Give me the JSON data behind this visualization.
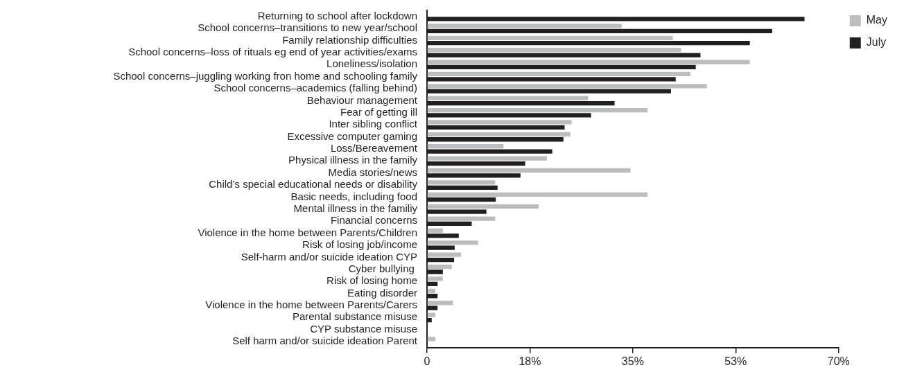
{
  "chart_data": {
    "type": "bar",
    "orientation": "horizontal",
    "categories": [
      "Returning to school after lockdown",
      "School concerns–transitions to new year/school",
      "Family relationship difficulties",
      "School concerns–loss of rituals eg end of year activities/exams",
      "Loneliness/isolation",
      "School concerns–juggling working fron home and schooling family",
      "School concerns–academics (falling behind)",
      "Behaviour management",
      "Fear of getting ill",
      "Inter sibling conflict",
      "Excessive computer gaming",
      "Loss/Bereavement",
      "Physical illness in the family",
      "Media stories/news",
      "Child’s special educational needs or disability",
      "Basic needs, including food",
      "Mental illness in the familiy",
      "Financial concerns",
      "Violence in the home between Parents/Children",
      "Risk of losing job/income",
      "Self-harm and/or suicide ideation CYP",
      "Cyber bullying ",
      "Risk of losing home",
      "Eating disorder",
      "Violence in the home between Parents/Carers",
      "Parental substance misuse",
      "CYP substance misuse",
      "Self harm and/or suicide ideation Parent"
    ],
    "series": [
      {
        "name": "May",
        "color": "#bcbdc0",
        "values": [
          null,
          33.1,
          41.8,
          43.2,
          54.9,
          44.8,
          47.6,
          27.4,
          37.5,
          24.6,
          24.4,
          13.0,
          20.4,
          34.6,
          11.6,
          37.5,
          19.0,
          11.6,
          2.7,
          8.7,
          5.8,
          4.2,
          2.7,
          1.4,
          4.4,
          1.4,
          null,
          1.4
        ]
      },
      {
        "name": "July",
        "color": "#231f20",
        "values": [
          64.2,
          58.7,
          54.9,
          46.5,
          45.7,
          42.3,
          41.5,
          31.9,
          27.9,
          23.4,
          23.2,
          21.3,
          16.7,
          15.9,
          12.0,
          11.7,
          10.1,
          7.6,
          5.4,
          4.7,
          4.6,
          2.7,
          1.8,
          1.8,
          1.8,
          0.8,
          null,
          null
        ]
      }
    ],
    "xlim": [
      0,
      70
    ],
    "xticks": [
      0,
      {
        "value": 17.5,
        "label": "18%"
      },
      {
        "value": 35,
        "label": "35%"
      },
      {
        "value": 52.5,
        "label": "53%"
      },
      {
        "value": 70,
        "label": "70%"
      }
    ],
    "legend": "top right",
    "grid": false
  }
}
